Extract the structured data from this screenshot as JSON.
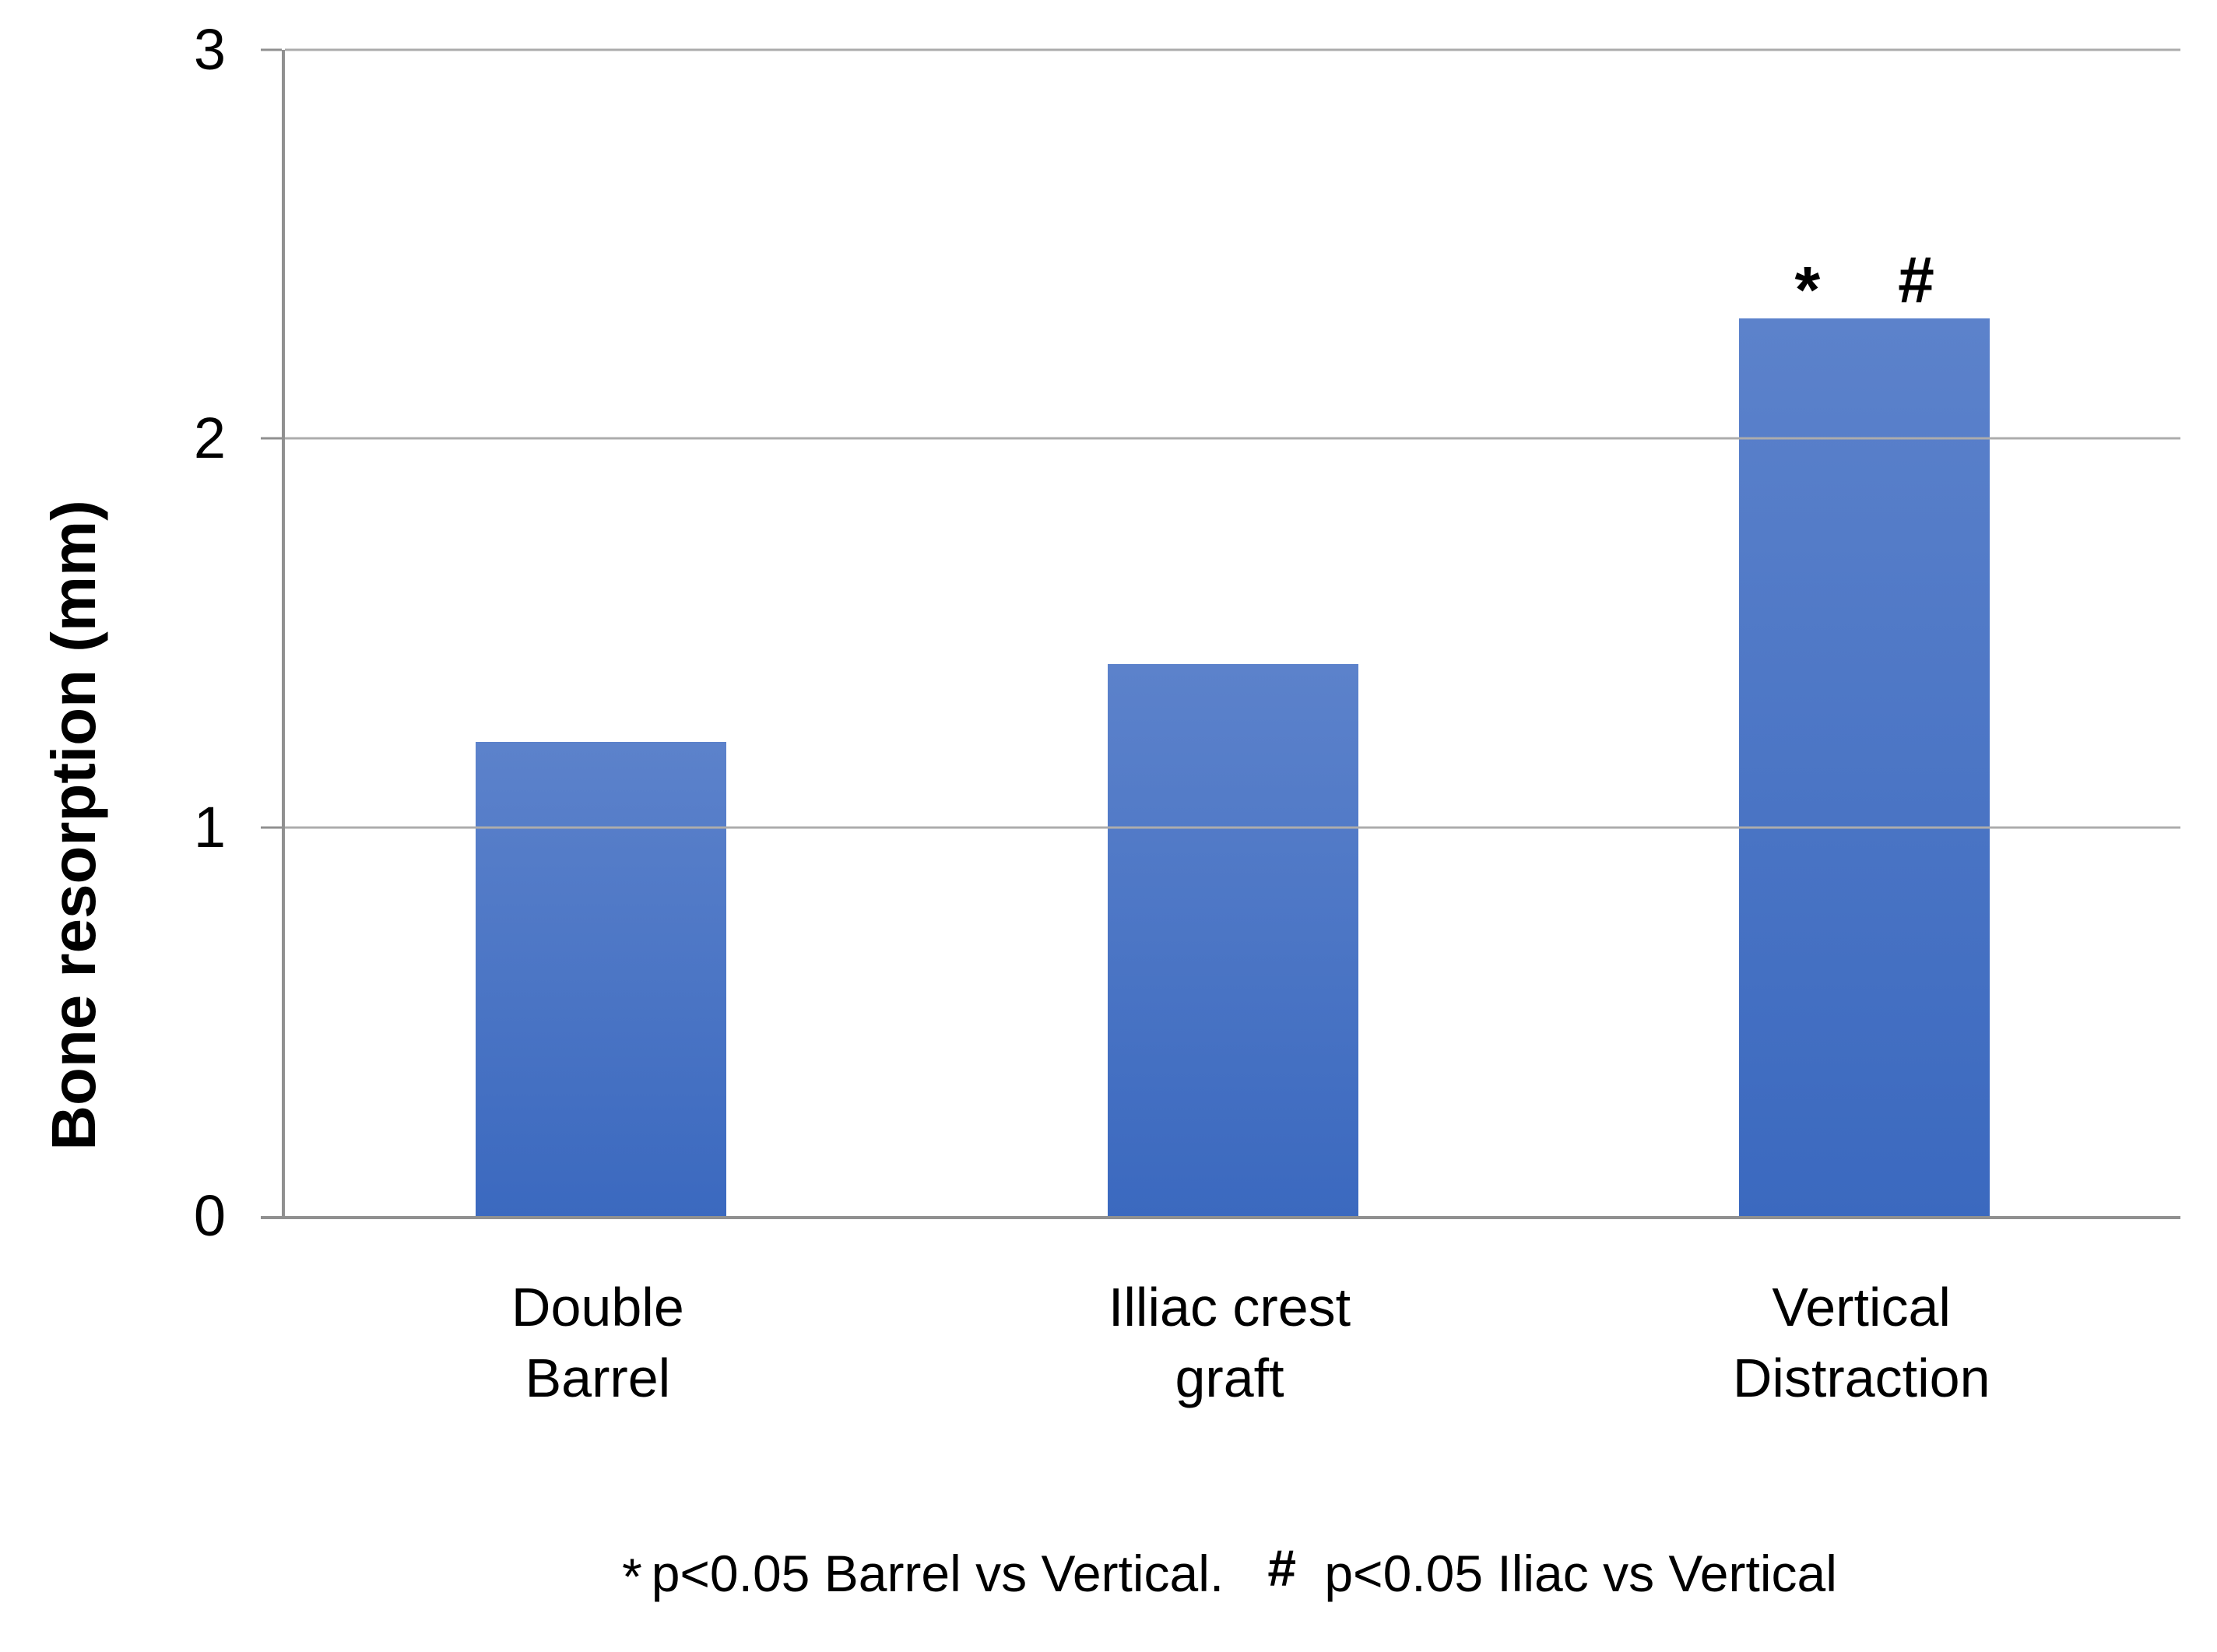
{
  "chart_data": {
    "type": "bar",
    "title": "",
    "categories": [
      "Double\nBarrel",
      "Illiac crest\ngraft",
      "Vertical\nDistraction"
    ],
    "values": [
      1.22,
      1.42,
      2.31
    ],
    "series_name": "Bone resorption",
    "xlabel": "",
    "ylabel": "Bone resorption (mm)",
    "ylim": [
      0,
      3
    ],
    "yticks": [
      0,
      1,
      2,
      3
    ],
    "grid": true,
    "legend": false,
    "bar_color_top": "#5C82CB",
    "bar_color_bottom": "#3B69BF",
    "axis_color": "#909090",
    "gridline_color": "#ACACAC",
    "annotations": [
      {
        "category_index": 2,
        "symbols": [
          "*",
          "#"
        ]
      }
    ]
  },
  "footnote": {
    "star": "*",
    "part1": "p<0.05 Barrel vs Vertical.",
    "hash": "#",
    "part2": "p<0.05 Iliac vs Vertical"
  }
}
